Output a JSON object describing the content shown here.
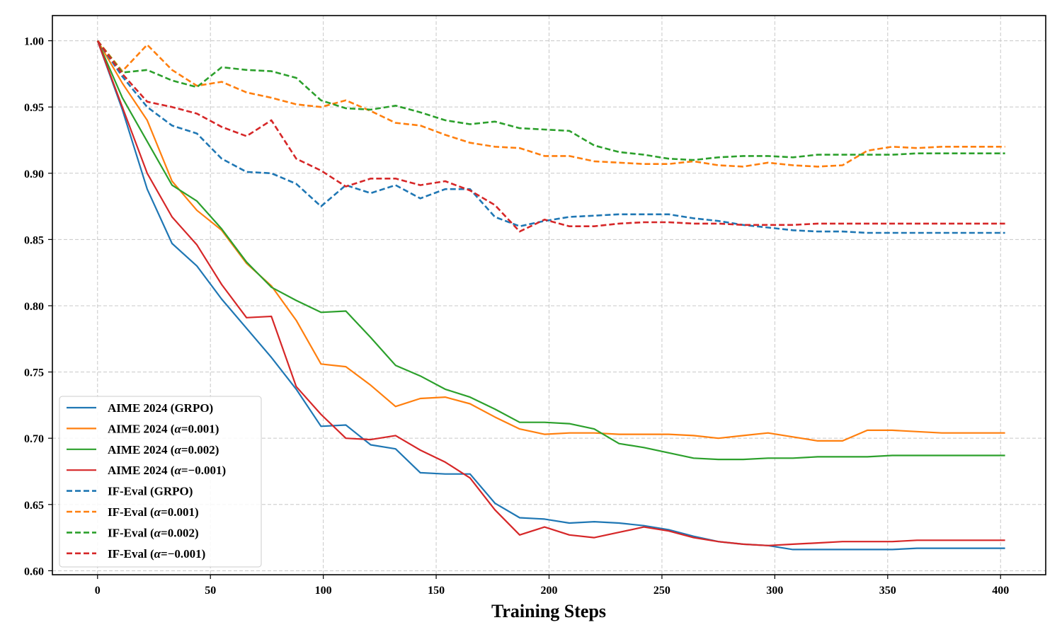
{
  "chart_data": {
    "type": "line",
    "title": "",
    "xlabel": "Training Steps",
    "ylabel": "",
    "xlim": [
      -20,
      420
    ],
    "ylim": [
      0.597,
      1.019
    ],
    "xticks": [
      0,
      50,
      100,
      150,
      200,
      250,
      300,
      350,
      400
    ],
    "yticks": [
      0.6,
      0.65,
      0.7,
      0.75,
      0.8,
      0.85,
      0.9,
      0.95,
      1.0
    ],
    "xtick_labels": [
      "0",
      "50",
      "100",
      "150",
      "200",
      "250",
      "300",
      "350",
      "400"
    ],
    "ytick_labels": [
      "0.60",
      "0.65",
      "0.70",
      "0.75",
      "0.80",
      "0.85",
      "0.90",
      "0.95",
      "1.00"
    ],
    "grid": true,
    "legend_position": "lower-left",
    "x": [
      0,
      11,
      22,
      33,
      44,
      55,
      66,
      77,
      88,
      99,
      110,
      121,
      132,
      143,
      154,
      165,
      176,
      187,
      198,
      209,
      220,
      231,
      242,
      253,
      264,
      275,
      286,
      297,
      308,
      319,
      330,
      341,
      352,
      363,
      374,
      385,
      402
    ],
    "series": [
      {
        "name": "AIME 2024 (GRPO)",
        "label_prefix": "AIME 2024 (",
        "label_alpha": "",
        "label_suffix": "GRPO)",
        "color": "#1f77b4",
        "dash": "solid",
        "values": [
          1.0,
          0.948,
          0.888,
          0.847,
          0.83,
          0.805,
          0.783,
          0.761,
          0.737,
          0.709,
          0.71,
          0.695,
          0.692,
          0.674,
          0.673,
          0.673,
          0.651,
          0.64,
          0.639,
          0.636,
          0.637,
          0.636,
          0.634,
          0.631,
          0.626,
          0.622,
          0.62,
          0.619,
          0.616,
          0.616,
          0.616,
          0.616,
          0.616,
          0.617,
          0.617,
          0.617,
          0.617
        ]
      },
      {
        "name": "AIME 2024 (α=0.001)",
        "label_prefix": "AIME 2024 (",
        "label_alpha": "α",
        "label_suffix": "=0.001)",
        "color": "#ff7f0e",
        "dash": "solid",
        "values": [
          1.0,
          0.968,
          0.94,
          0.894,
          0.872,
          0.857,
          0.832,
          0.815,
          0.789,
          0.756,
          0.754,
          0.74,
          0.724,
          0.73,
          0.731,
          0.726,
          0.716,
          0.707,
          0.703,
          0.704,
          0.704,
          0.703,
          0.703,
          0.703,
          0.702,
          0.7,
          0.702,
          0.704,
          0.701,
          0.698,
          0.698,
          0.706,
          0.706,
          0.705,
          0.704,
          0.704,
          0.704
        ]
      },
      {
        "name": "AIME 2024 (α=0.002)",
        "label_prefix": "AIME 2024 (",
        "label_alpha": "α",
        "label_suffix": "=0.002)",
        "color": "#2ca02c",
        "dash": "solid",
        "values": [
          1.0,
          0.957,
          0.924,
          0.891,
          0.879,
          0.858,
          0.833,
          0.814,
          0.804,
          0.795,
          0.796,
          0.776,
          0.755,
          0.747,
          0.737,
          0.731,
          0.722,
          0.712,
          0.712,
          0.711,
          0.707,
          0.696,
          0.693,
          0.689,
          0.685,
          0.684,
          0.684,
          0.685,
          0.685,
          0.686,
          0.686,
          0.686,
          0.687,
          0.687,
          0.687,
          0.687,
          0.687
        ]
      },
      {
        "name": "AIME 2024 (α=−0.001)",
        "label_prefix": "AIME 2024 (",
        "label_alpha": "α",
        "label_suffix": "=−0.001)",
        "color": "#d62728",
        "dash": "solid",
        "values": [
          1.0,
          0.95,
          0.9,
          0.867,
          0.846,
          0.816,
          0.791,
          0.792,
          0.739,
          0.718,
          0.7,
          0.699,
          0.702,
          0.691,
          0.682,
          0.67,
          0.646,
          0.627,
          0.633,
          0.627,
          0.625,
          0.629,
          0.633,
          0.63,
          0.625,
          0.622,
          0.62,
          0.619,
          0.62,
          0.621,
          0.622,
          0.622,
          0.622,
          0.623,
          0.623,
          0.623,
          0.623
        ]
      },
      {
        "name": "IF-Eval (GRPO)",
        "label_prefix": "IF-Eval (",
        "label_alpha": "",
        "label_suffix": "GRPO)",
        "color": "#1f77b4",
        "dash": "dashed",
        "values": [
          1.0,
          0.973,
          0.95,
          0.936,
          0.93,
          0.911,
          0.901,
          0.9,
          0.892,
          0.875,
          0.891,
          0.885,
          0.891,
          0.881,
          0.888,
          0.888,
          0.867,
          0.86,
          0.864,
          0.867,
          0.868,
          0.869,
          0.869,
          0.869,
          0.866,
          0.864,
          0.861,
          0.859,
          0.857,
          0.856,
          0.856,
          0.855,
          0.855,
          0.855,
          0.855,
          0.855,
          0.855
        ]
      },
      {
        "name": "IF-Eval (α=0.001)",
        "label_prefix": "IF-Eval (",
        "label_alpha": "α",
        "label_suffix": "=0.001)",
        "color": "#ff7f0e",
        "dash": "dashed",
        "values": [
          1.0,
          0.977,
          0.997,
          0.978,
          0.966,
          0.969,
          0.961,
          0.957,
          0.952,
          0.95,
          0.955,
          0.947,
          0.938,
          0.936,
          0.929,
          0.923,
          0.92,
          0.919,
          0.913,
          0.913,
          0.909,
          0.908,
          0.907,
          0.907,
          0.909,
          0.906,
          0.905,
          0.908,
          0.906,
          0.905,
          0.906,
          0.917,
          0.92,
          0.919,
          0.92,
          0.92,
          0.92
        ]
      },
      {
        "name": "IF-Eval (α=0.002)",
        "label_prefix": "IF-Eval (",
        "label_alpha": "α",
        "label_suffix": "=0.002)",
        "color": "#2ca02c",
        "dash": "dashed",
        "values": [
          1.0,
          0.976,
          0.978,
          0.97,
          0.965,
          0.98,
          0.978,
          0.977,
          0.972,
          0.955,
          0.949,
          0.948,
          0.951,
          0.946,
          0.94,
          0.937,
          0.939,
          0.934,
          0.933,
          0.932,
          0.921,
          0.916,
          0.914,
          0.911,
          0.91,
          0.912,
          0.913,
          0.913,
          0.912,
          0.914,
          0.914,
          0.914,
          0.914,
          0.915,
          0.915,
          0.915,
          0.915
        ]
      },
      {
        "name": "IF-Eval (α=−0.001)",
        "label_prefix": "IF-Eval (",
        "label_alpha": "α",
        "label_suffix": "=−0.001)",
        "color": "#d62728",
        "dash": "dashed",
        "values": [
          1.0,
          0.975,
          0.954,
          0.95,
          0.945,
          0.935,
          0.928,
          0.94,
          0.911,
          0.902,
          0.89,
          0.896,
          0.896,
          0.891,
          0.894,
          0.887,
          0.876,
          0.856,
          0.865,
          0.86,
          0.86,
          0.862,
          0.863,
          0.863,
          0.862,
          0.862,
          0.861,
          0.861,
          0.861,
          0.862,
          0.862,
          0.862,
          0.862,
          0.862,
          0.862,
          0.862,
          0.862
        ]
      }
    ]
  }
}
